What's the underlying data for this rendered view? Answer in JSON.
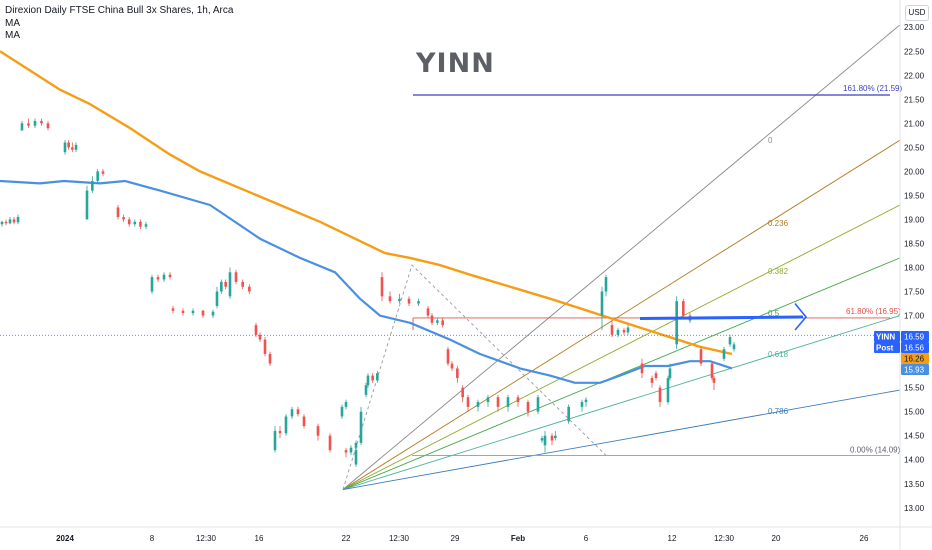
{
  "header": {
    "title": "Direxion Daily FTSE China Bull 3x Shares, 1h, Arca",
    "indicator_1": "MA",
    "indicator_2": "MA"
  },
  "watermark": "YINN",
  "currency": "USD",
  "colors": {
    "up": "#26a69a",
    "down": "#ef5350",
    "ma_fast": "#4a90e2",
    "ma_slow": "#f59d16",
    "price_line": "#2962ff",
    "fib_ext": "#3f3fbf",
    "fib_618_line": "#e0504a"
  },
  "chart_data": {
    "type": "candlestick",
    "y_axis": {
      "min": 12.6,
      "max": 23.4,
      "ticks": [
        "13.00",
        "13.50",
        "14.00",
        "14.50",
        "15.00",
        "15.50",
        "16.00",
        "16.50",
        "17.00",
        "17.50",
        "18.00",
        "18.50",
        "19.00",
        "19.50",
        "20.00",
        "20.50",
        "21.00",
        "21.50",
        "22.00",
        "22.50",
        "23.00"
      ]
    },
    "x_axis": {
      "ticks": [
        "2024",
        "8",
        "12:30",
        "16",
        "22",
        "12:30",
        "29",
        "Feb",
        "6",
        "12",
        "12:30",
        "20",
        "26"
      ]
    },
    "candles": [
      [
        18.9,
        18.95,
        18.85,
        18.97
      ],
      [
        18.95,
        18.92,
        18.88,
        19.0
      ],
      [
        18.92,
        19.0,
        18.9,
        19.05
      ],
      [
        19.0,
        18.94,
        18.9,
        19.05
      ],
      [
        18.94,
        19.05,
        18.9,
        19.1
      ],
      [
        20.85,
        21.0,
        20.85,
        21.05
      ],
      [
        21.0,
        20.95,
        20.9,
        21.1
      ],
      [
        20.95,
        21.05,
        20.9,
        21.1
      ],
      [
        21.05,
        21.0,
        20.95,
        21.1
      ],
      [
        21.0,
        20.9,
        20.85,
        21.05
      ],
      [
        20.4,
        20.6,
        20.35,
        20.65
      ],
      [
        20.6,
        20.5,
        20.45,
        20.65
      ],
      [
        20.5,
        20.45,
        20.4,
        20.6
      ],
      [
        20.45,
        20.55,
        20.4,
        20.6
      ],
      [
        19.0,
        19.6,
        19.0,
        19.7
      ],
      [
        19.6,
        19.8,
        19.55,
        19.9
      ],
      [
        19.8,
        20.0,
        19.75,
        20.05
      ],
      [
        20.0,
        19.95,
        19.9,
        20.05
      ],
      [
        19.25,
        19.05,
        19.0,
        19.3
      ],
      [
        19.05,
        19.0,
        18.95,
        19.1
      ],
      [
        19.0,
        18.9,
        18.85,
        19.05
      ],
      [
        18.9,
        18.95,
        18.85,
        19.0
      ],
      [
        18.95,
        18.85,
        18.8,
        19.0
      ],
      [
        18.85,
        18.9,
        18.8,
        18.95
      ],
      [
        17.5,
        17.8,
        17.45,
        17.85
      ],
      [
        17.8,
        17.75,
        17.7,
        17.85
      ],
      [
        17.75,
        17.85,
        17.7,
        17.9
      ],
      [
        17.85,
        17.8,
        17.75,
        17.9
      ],
      [
        17.15,
        17.1,
        17.05,
        17.2
      ],
      [
        17.1,
        17.05,
        17.0,
        17.15
      ],
      [
        17.05,
        17.1,
        17.0,
        17.15
      ],
      [
        17.1,
        17.0,
        16.95,
        17.12
      ],
      [
        17.0,
        17.08,
        16.95,
        17.12
      ],
      [
        17.2,
        17.5,
        17.15,
        17.6
      ],
      [
        17.5,
        17.7,
        17.45,
        17.75
      ],
      [
        17.7,
        17.6,
        17.55,
        17.75
      ],
      [
        17.4,
        17.9,
        17.35,
        18.0
      ],
      [
        17.9,
        17.7,
        17.65,
        17.95
      ],
      [
        17.7,
        17.6,
        17.55,
        17.75
      ],
      [
        17.6,
        17.5,
        17.45,
        17.65
      ],
      [
        16.8,
        16.6,
        16.55,
        16.85
      ],
      [
        16.6,
        16.5,
        16.45,
        16.65
      ],
      [
        16.5,
        16.2,
        16.15,
        16.55
      ],
      [
        16.2,
        16.0,
        15.95,
        16.25
      ],
      [
        14.2,
        14.6,
        14.15,
        14.7
      ],
      [
        14.6,
        14.55,
        14.45,
        14.7
      ],
      [
        14.55,
        14.9,
        14.5,
        14.95
      ],
      [
        14.9,
        15.05,
        14.85,
        15.1
      ],
      [
        15.05,
        14.95,
        14.9,
        15.1
      ],
      [
        14.9,
        14.7,
        14.65,
        14.95
      ],
      [
        14.7,
        14.5,
        14.4,
        14.75
      ],
      [
        14.5,
        14.2,
        14.15,
        14.55
      ],
      [
        14.9,
        15.1,
        14.85,
        15.15
      ],
      [
        15.1,
        15.2,
        15.05,
        15.25
      ],
      [
        13.9,
        14.2,
        13.85,
        14.25
      ],
      [
        14.2,
        14.15,
        14.05,
        14.25
      ],
      [
        14.15,
        14.25,
        14.1,
        14.3
      ],
      [
        14.25,
        14.35,
        14.2,
        14.4
      ],
      [
        14.35,
        15.0,
        14.3,
        15.1
      ],
      [
        15.35,
        15.55,
        15.3,
        15.6
      ],
      [
        15.55,
        15.75,
        15.5,
        15.8
      ],
      [
        15.75,
        15.65,
        15.6,
        15.8
      ],
      [
        15.65,
        15.8,
        15.6,
        15.85
      ],
      [
        17.8,
        17.4,
        17.3,
        17.9
      ],
      [
        17.4,
        17.3,
        17.25,
        17.5
      ],
      [
        17.3,
        17.35,
        17.25,
        17.45
      ],
      [
        17.35,
        17.25,
        17.2,
        17.4
      ],
      [
        17.25,
        17.3,
        17.2,
        17.35
      ],
      [
        17.15,
        17.0,
        16.95,
        17.2
      ],
      [
        17.0,
        16.85,
        16.8,
        17.05
      ],
      [
        16.85,
        16.9,
        16.8,
        16.95
      ],
      [
        16.9,
        16.8,
        16.75,
        16.95
      ],
      [
        16.3,
        16.0,
        15.95,
        16.35
      ],
      [
        16.0,
        15.9,
        15.85,
        16.05
      ],
      [
        15.9,
        15.7,
        15.6,
        15.95
      ],
      [
        15.5,
        15.3,
        15.2,
        15.55
      ],
      [
        15.3,
        15.1,
        15.0,
        15.35
      ],
      [
        15.1,
        15.2,
        15.0,
        15.25
      ],
      [
        15.2,
        15.3,
        15.1,
        15.35
      ],
      [
        15.3,
        15.1,
        15.0,
        15.35
      ],
      [
        15.1,
        15.3,
        15.0,
        15.35
      ],
      [
        15.3,
        15.2,
        15.1,
        15.35
      ],
      [
        15.2,
        15.0,
        14.9,
        15.25
      ],
      [
        15.0,
        15.3,
        14.95,
        15.35
      ],
      [
        14.3,
        14.5,
        14.15,
        14.6
      ],
      [
        14.5,
        14.4,
        14.3,
        14.55
      ],
      [
        14.4,
        14.45,
        14.35,
        14.5
      ],
      [
        14.45,
        14.5,
        14.4,
        14.6
      ],
      [
        14.8,
        15.1,
        14.75,
        15.15
      ],
      [
        15.1,
        15.2,
        15.0,
        15.25
      ],
      [
        15.2,
        15.25,
        15.1,
        15.3
      ],
      [
        17.0,
        17.5,
        16.7,
        17.6
      ],
      [
        17.5,
        17.8,
        17.4,
        17.85
      ],
      [
        16.8,
        16.6,
        16.55,
        16.9
      ],
      [
        16.6,
        16.7,
        16.55,
        16.75
      ],
      [
        16.7,
        16.65,
        16.6,
        16.75
      ],
      [
        16.65,
        16.75,
        16.6,
        16.8
      ],
      [
        16.0,
        15.8,
        15.7,
        16.1
      ],
      [
        15.8,
        15.7,
        15.65,
        15.85
      ],
      [
        15.7,
        15.6,
        15.5,
        15.75
      ],
      [
        15.5,
        15.2,
        15.1,
        15.55
      ],
      [
        15.2,
        15.7,
        15.15,
        15.75
      ],
      [
        15.7,
        15.9,
        15.65,
        16.0
      ],
      [
        16.4,
        17.3,
        16.3,
        17.4
      ],
      [
        17.3,
        17.0,
        16.95,
        17.35
      ],
      [
        17.0,
        16.9,
        16.85,
        17.05
      ],
      [
        16.9,
        16.95,
        16.85,
        17.0
      ],
      [
        16.3,
        16.0,
        15.95,
        16.35
      ],
      [
        16.0,
        15.7,
        15.65,
        16.05
      ],
      [
        15.7,
        15.6,
        15.45,
        15.75
      ],
      [
        16.1,
        16.3,
        16.05,
        16.35
      ],
      [
        16.3,
        16.4,
        16.25,
        16.45
      ],
      [
        16.4,
        16.55,
        16.35,
        16.6
      ]
    ],
    "ma_fast": [
      [
        0,
        19.8
      ],
      [
        40,
        19.75
      ],
      [
        64,
        19.8
      ],
      [
        100,
        19.75
      ],
      [
        125,
        19.8
      ],
      [
        160,
        19.6
      ],
      [
        210,
        19.3
      ],
      [
        260,
        18.6
      ],
      [
        300,
        18.2
      ],
      [
        335,
        17.9
      ],
      [
        360,
        17.35
      ],
      [
        380,
        17.0
      ],
      [
        410,
        16.85
      ],
      [
        450,
        16.5
      ],
      [
        480,
        16.2
      ],
      [
        520,
        15.9
      ],
      [
        550,
        15.75
      ],
      [
        575,
        15.6
      ],
      [
        600,
        15.6
      ],
      [
        620,
        15.75
      ],
      [
        645,
        15.95
      ],
      [
        668,
        15.95
      ],
      [
        690,
        16.05
      ],
      [
        710,
        16.05
      ],
      [
        732,
        15.9
      ]
    ],
    "ma_slow": [
      [
        0,
        22.5
      ],
      [
        30,
        22.1
      ],
      [
        60,
        21.7
      ],
      [
        90,
        21.4
      ],
      [
        130,
        20.9
      ],
      [
        170,
        20.35
      ],
      [
        200,
        20.0
      ],
      [
        240,
        19.65
      ],
      [
        280,
        19.3
      ],
      [
        320,
        18.95
      ],
      [
        360,
        18.55
      ],
      [
        385,
        18.3
      ],
      [
        410,
        18.2
      ],
      [
        440,
        18.05
      ],
      [
        470,
        17.85
      ],
      [
        510,
        17.6
      ],
      [
        550,
        17.35
      ],
      [
        580,
        17.15
      ],
      [
        610,
        16.95
      ],
      [
        640,
        16.75
      ],
      [
        670,
        16.55
      ],
      [
        700,
        16.35
      ],
      [
        732,
        16.2
      ]
    ],
    "fibonacci": {
      "anchor_label": "0.00% (14.09)",
      "levels": [
        "0",
        "0.236",
        "0.382",
        "0.5",
        "0.618",
        "0.786"
      ],
      "extension_label": "161.80% (21.59)",
      "retracement_label": "61.80% (16.95)"
    },
    "price_tags": [
      {
        "label": "YINN",
        "value": "16.59",
        "color": "#2962ff"
      },
      {
        "label": "Post",
        "value": "16.56",
        "color": "#2962ff"
      },
      {
        "value": "16.26",
        "color": "#f59d16"
      },
      {
        "value": "15.93",
        "color": "#4a90e2"
      }
    ]
  }
}
